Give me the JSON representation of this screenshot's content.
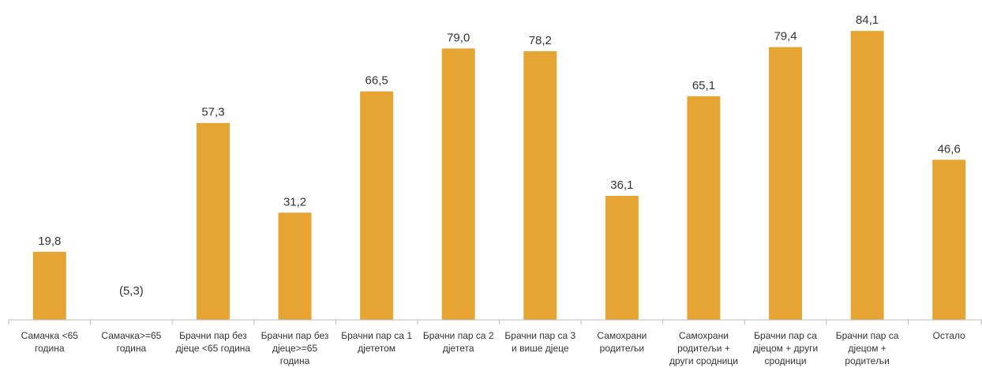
{
  "chart_data": {
    "type": "bar",
    "categories": [
      [
        "Самачка <65",
        "година"
      ],
      [
        "Самачка>=65",
        "година"
      ],
      [
        "Брачни пар без",
        "дјеце <65 година"
      ],
      [
        "Брачни пар без",
        "дјеце>=65",
        "година"
      ],
      [
        "Брачни пар са 1",
        "дјететом"
      ],
      [
        "Брачни пар са 2",
        "дјетета"
      ],
      [
        "Брачни пар са 3",
        "и више дјеце"
      ],
      [
        "Самохрани",
        "родитељи"
      ],
      [
        "Самохрани",
        "родитељи +",
        "други сродници"
      ],
      [
        "Брачни пар са",
        "дјецом + други",
        "сродници"
      ],
      [
        "Брачни пар са",
        "дјецом +",
        "родитељи"
      ],
      [
        "Остало"
      ]
    ],
    "values": [
      19.8,
      5.3,
      57.3,
      31.2,
      66.5,
      79.0,
      78.2,
      36.1,
      65.1,
      79.4,
      84.1,
      46.6
    ],
    "value_labels": [
      "19,8",
      "(5,3)",
      "57,3",
      "31,2",
      "66,5",
      "79,0",
      "78,2",
      "36,1",
      "65,1",
      "79,4",
      "84,1",
      "46,6"
    ],
    "bar_drawn": [
      true,
      false,
      true,
      true,
      true,
      true,
      true,
      true,
      true,
      true,
      true,
      true
    ],
    "ylim": [
      0,
      90
    ],
    "grid": false,
    "legend": "none",
    "bar_color": "#E6A532",
    "axis_color": "#BBBBBB",
    "text_color": "#333333"
  }
}
